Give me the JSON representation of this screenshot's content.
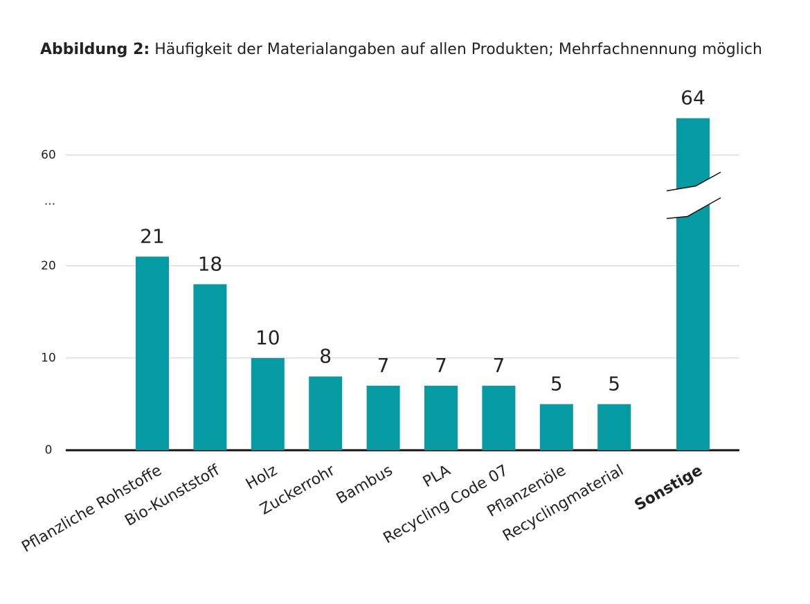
{
  "chart_data": {
    "type": "bar",
    "title_prefix": "Abbildung 2:",
    "title": "Häufigkeit der Materialangaben auf allen Produkten; Mehrfachnennung möglich",
    "categories": [
      "Pflanzliche Rohstoffe",
      "Bio-Kunststoff",
      "Holz",
      "Zuckerrohr",
      "Bambus",
      "PLA",
      "Recycling Code 07",
      "Pflanzenöle",
      "Recyclingmaterial",
      "Sonstige"
    ],
    "values": [
      21,
      18,
      10,
      8,
      7,
      7,
      7,
      5,
      5,
      64
    ],
    "color": "#069ba3",
    "ylim": [
      0,
      66
    ],
    "y_break": [
      24,
      58
    ],
    "y_break_label": "...",
    "yticks": [
      0,
      10,
      20,
      60
    ],
    "grid": true
  }
}
